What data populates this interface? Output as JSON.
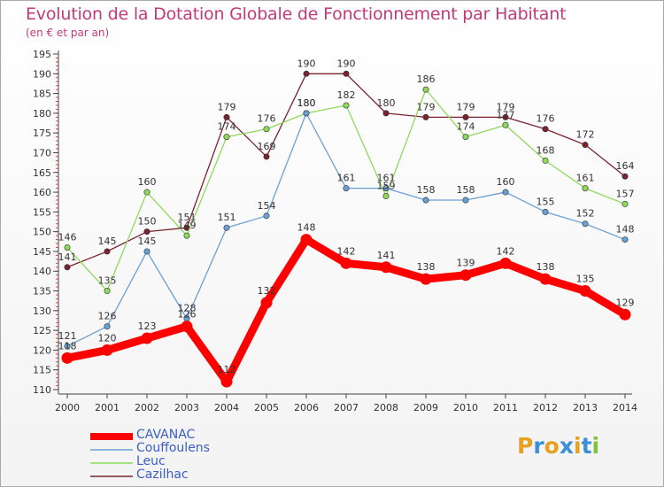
{
  "title": "Evolution de la Dotation Globale de Fonctionnement par Habitant",
  "subtitle": "(en € et par an)",
  "logo": "Proxiti",
  "chart_data": {
    "type": "line",
    "title": "Evolution de la Dotation Globale de Fonctionnement par Habitant",
    "subtitle": "(en € et par an)",
    "xlabel": "",
    "ylabel": "",
    "x": [
      "2000",
      "2001",
      "2002",
      "2003",
      "2004",
      "2005",
      "2006",
      "2007",
      "2008",
      "2009",
      "2010",
      "2011",
      "2012",
      "2013",
      "2014"
    ],
    "ylim": [
      110,
      195
    ],
    "yticks": [
      110,
      115,
      120,
      125,
      130,
      135,
      140,
      145,
      150,
      155,
      160,
      165,
      170,
      175,
      180,
      185,
      190,
      195
    ],
    "grid": false,
    "legend_position": "bottom-left",
    "series": [
      {
        "name": "CAVANAC",
        "color": "#ff0000",
        "values": [
          118,
          120,
          123,
          126,
          112,
          132,
          148,
          142,
          141,
          138,
          139,
          142,
          138,
          135,
          129
        ]
      },
      {
        "name": "Couffoulens",
        "color": "#6a9fd4",
        "values": [
          121,
          126,
          145,
          128,
          151,
          154,
          180,
          161,
          161,
          158,
          158,
          160,
          155,
          152,
          148
        ]
      },
      {
        "name": "Leuc",
        "color": "#8ed95a",
        "values": [
          146,
          135,
          160,
          149,
          174,
          176,
          180,
          182,
          159,
          186,
          174,
          177,
          168,
          161,
          157
        ]
      },
      {
        "name": "Cazilhac",
        "color": "#7a2230",
        "values": [
          141,
          145,
          150,
          151,
          179,
          169,
          190,
          190,
          180,
          179,
          179,
          179,
          176,
          172,
          164
        ]
      }
    ]
  }
}
